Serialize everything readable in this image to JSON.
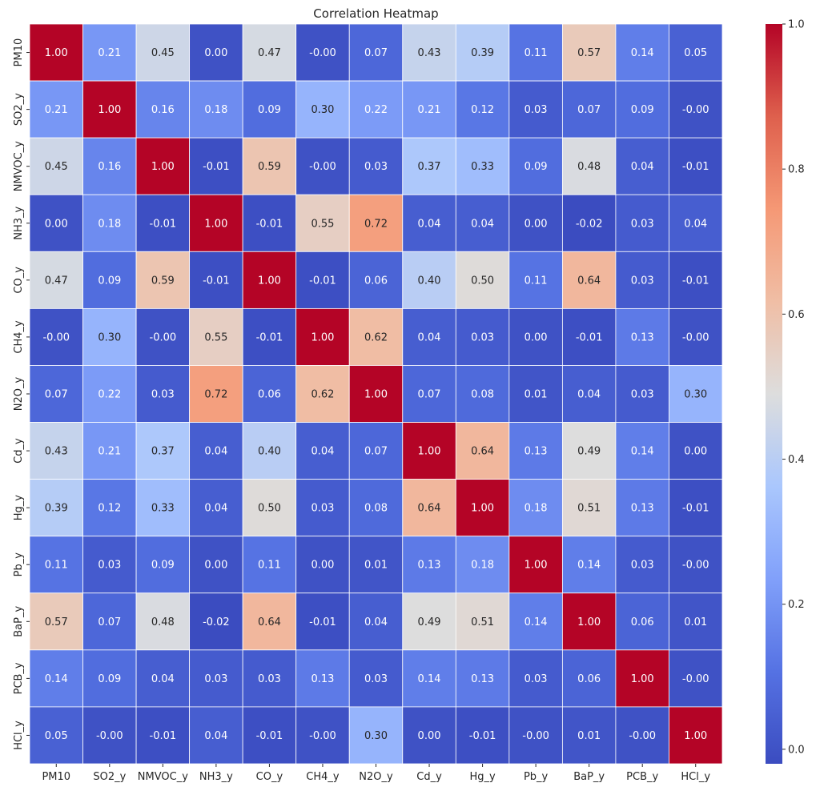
{
  "chart_data": {
    "type": "heatmap",
    "title": "Correlation Heatmap",
    "row_labels": [
      "PM10",
      "SO2_y",
      "NMVOC_y",
      "NH3_y",
      "CO_y",
      "CH4_y",
      "N2O_y",
      "Cd_y",
      "Hg_y",
      "Pb_y",
      "BaP_y",
      "PCB_y",
      "HCl_y"
    ],
    "col_labels": [
      "PM10",
      "SO2_y",
      "NMVOC_y",
      "NH3_y",
      "CO_y",
      "CH4_y",
      "N2O_y",
      "Cd_y",
      "Hg_y",
      "Pb_y",
      "BaP_y",
      "PCB_y",
      "HCl_y"
    ],
    "values": [
      [
        1.0,
        0.21,
        0.45,
        0.0,
        0.47,
        -0.0,
        0.07,
        0.43,
        0.39,
        0.11,
        0.57,
        0.14,
        0.05
      ],
      [
        0.21,
        1.0,
        0.16,
        0.18,
        0.09,
        0.3,
        0.22,
        0.21,
        0.12,
        0.03,
        0.07,
        0.09,
        -0.0
      ],
      [
        0.45,
        0.16,
        1.0,
        -0.01,
        0.59,
        -0.0,
        0.03,
        0.37,
        0.33,
        0.09,
        0.48,
        0.04,
        -0.01
      ],
      [
        0.0,
        0.18,
        -0.01,
        1.0,
        -0.01,
        0.55,
        0.72,
        0.04,
        0.04,
        0.0,
        -0.02,
        0.03,
        0.04
      ],
      [
        0.47,
        0.09,
        0.59,
        -0.01,
        1.0,
        -0.01,
        0.06,
        0.4,
        0.5,
        0.11,
        0.64,
        0.03,
        -0.01
      ],
      [
        -0.0,
        0.3,
        -0.0,
        0.55,
        -0.01,
        1.0,
        0.62,
        0.04,
        0.03,
        0.0,
        -0.01,
        0.13,
        -0.0
      ],
      [
        0.07,
        0.22,
        0.03,
        0.72,
        0.06,
        0.62,
        1.0,
        0.07,
        0.08,
        0.01,
        0.04,
        0.03,
        0.3
      ],
      [
        0.43,
        0.21,
        0.37,
        0.04,
        0.4,
        0.04,
        0.07,
        1.0,
        0.64,
        0.13,
        0.49,
        0.14,
        0.0
      ],
      [
        0.39,
        0.12,
        0.33,
        0.04,
        0.5,
        0.03,
        0.08,
        0.64,
        1.0,
        0.18,
        0.51,
        0.13,
        -0.01
      ],
      [
        0.11,
        0.03,
        0.09,
        0.0,
        0.11,
        0.0,
        0.01,
        0.13,
        0.18,
        1.0,
        0.14,
        0.03,
        -0.0
      ],
      [
        0.57,
        0.07,
        0.48,
        -0.02,
        0.64,
        -0.01,
        0.04,
        0.49,
        0.51,
        0.14,
        1.0,
        0.06,
        0.01
      ],
      [
        0.14,
        0.09,
        0.04,
        0.03,
        0.03,
        0.13,
        0.03,
        0.14,
        0.13,
        0.03,
        0.06,
        1.0,
        -0.0
      ],
      [
        0.05,
        -0.0,
        -0.01,
        0.04,
        -0.01,
        -0.0,
        0.3,
        0.0,
        -0.01,
        -0.0,
        0.01,
        -0.0,
        1.0
      ]
    ],
    "value_format": "2 decimals",
    "color_range": [
      -0.02,
      1.0
    ],
    "colormap": "coolwarm",
    "colorbar": {
      "ticks": [
        0.0,
        0.2,
        0.4,
        0.6,
        0.8,
        1.0
      ],
      "tick_labels": [
        "0.0",
        "0.2",
        "0.4",
        "0.6",
        "0.8",
        "1.0"
      ],
      "placement": "right"
    },
    "cell_border_color": "#ffffff"
  }
}
